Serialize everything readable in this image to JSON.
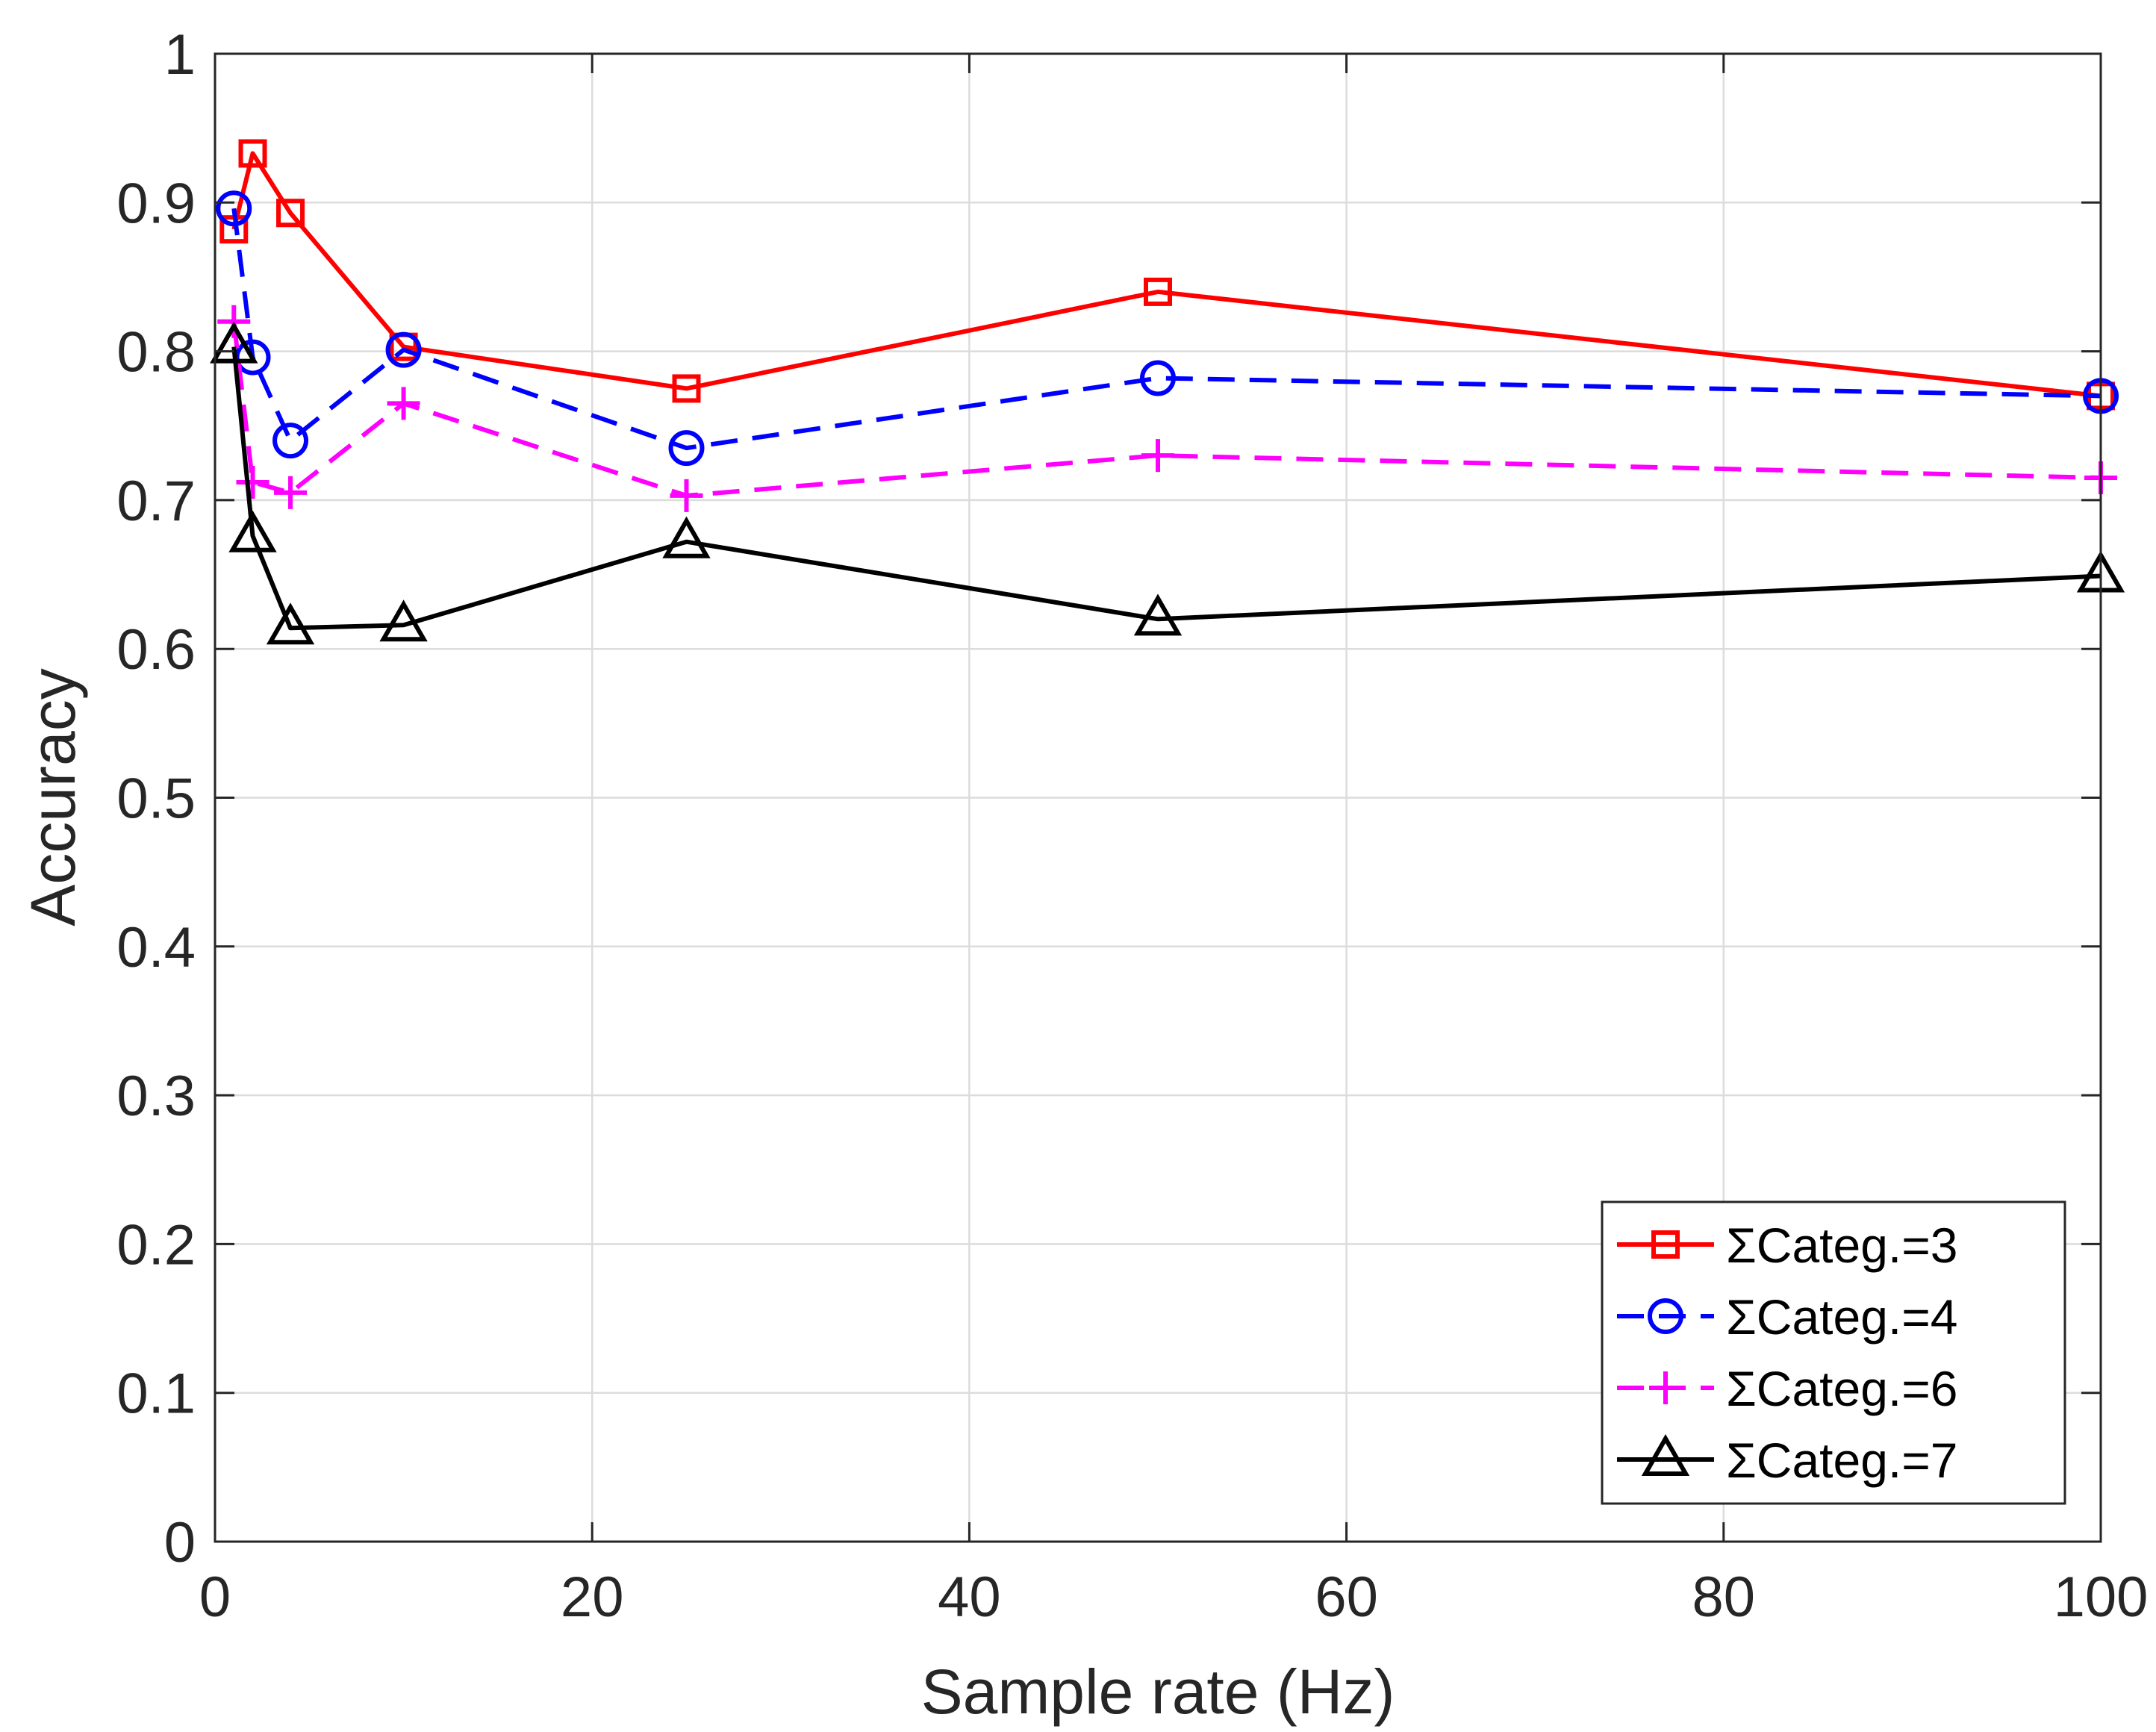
{
  "chart_data": {
    "type": "line",
    "title": "",
    "xlabel": "Sample rate (Hz)",
    "ylabel": "Accuracy",
    "xlim": [
      0,
      100
    ],
    "ylim": [
      0,
      1
    ],
    "xticks": [
      0,
      20,
      40,
      60,
      80,
      100
    ],
    "xtick_labels": [
      "0",
      "20",
      "40",
      "60",
      "80",
      "100"
    ],
    "yticks": [
      0,
      0.1,
      0.2,
      0.3,
      0.4,
      0.5,
      0.6,
      0.7,
      0.8,
      0.9,
      1
    ],
    "ytick_labels": [
      "0",
      "0.1",
      "0.2",
      "0.3",
      "0.4",
      "0.5",
      "0.6",
      "0.7",
      "0.8",
      "0.9",
      "1"
    ],
    "grid": true,
    "legend_position": "bottom-right",
    "series": [
      {
        "name": "ΣCateg.=3",
        "color": "#ff0000",
        "line_style": "solid",
        "marker": "square",
        "x": [
          1,
          2,
          4,
          10,
          25,
          50,
          100
        ],
        "y": [
          0.882,
          0.933,
          0.893,
          0.803,
          0.775,
          0.84,
          0.77
        ]
      },
      {
        "name": "ΣCateg.=4",
        "color": "#0000ff",
        "line_style": "dashed",
        "marker": "circle",
        "x": [
          1,
          2,
          4,
          10,
          25,
          50,
          100
        ],
        "y": [
          0.896,
          0.796,
          0.74,
          0.801,
          0.735,
          0.782,
          0.77
        ]
      },
      {
        "name": "ΣCateg.=6",
        "color": "#ff00ff",
        "line_style": "dashed",
        "marker": "plus",
        "x": [
          1,
          2,
          4,
          10,
          25,
          50,
          100
        ],
        "y": [
          0.82,
          0.712,
          0.705,
          0.765,
          0.703,
          0.73,
          0.715
        ]
      },
      {
        "name": "ΣCateg.=7",
        "color": "#000000",
        "line_style": "solid",
        "marker": "triangle",
        "x": [
          1,
          2,
          4,
          10,
          25,
          50,
          100
        ],
        "y": [
          0.803,
          0.676,
          0.614,
          0.616,
          0.672,
          0.62,
          0.649
        ]
      }
    ]
  }
}
